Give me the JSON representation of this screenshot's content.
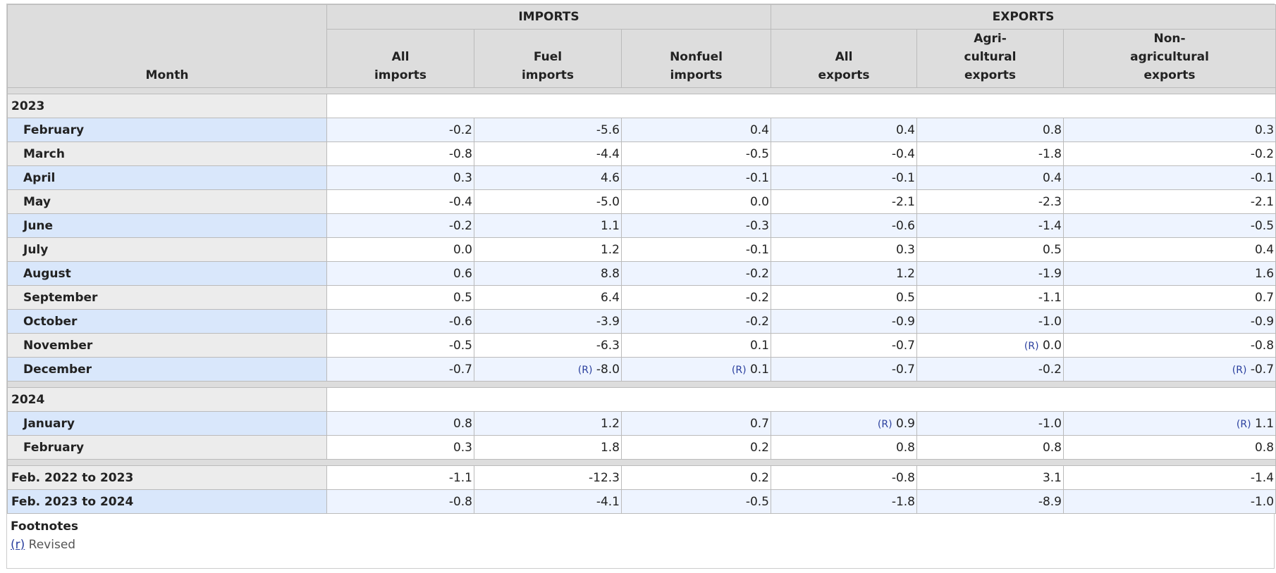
{
  "header": {
    "month": "Month",
    "groups": [
      {
        "label": "IMPORTS",
        "columns": [
          "All\nimports",
          "Fuel\nimports",
          "Nonfuel\nimports"
        ]
      },
      {
        "label": "EXPORTS",
        "columns": [
          "All\nexports",
          "Agri-\ncultural\nexports",
          "Non-\nagricultural\nexports"
        ]
      }
    ]
  },
  "sections": [
    {
      "label": "2023",
      "rows": [
        {
          "month": "February",
          "cells": [
            "-0.2",
            "-5.6",
            "0.4",
            "0.4",
            "0.8",
            "0.3"
          ]
        },
        {
          "month": "March",
          "cells": [
            "-0.8",
            "-4.4",
            "-0.5",
            "-0.4",
            "-1.8",
            "-0.2"
          ]
        },
        {
          "month": "April",
          "cells": [
            "0.3",
            "4.6",
            "-0.1",
            "-0.1",
            "0.4",
            "-0.1"
          ]
        },
        {
          "month": "May",
          "cells": [
            "-0.4",
            "-5.0",
            "0.0",
            "-2.1",
            "-2.3",
            "-2.1"
          ]
        },
        {
          "month": "June",
          "cells": [
            "-0.2",
            "1.1",
            "-0.3",
            "-0.6",
            "-1.4",
            "-0.5"
          ]
        },
        {
          "month": "July",
          "cells": [
            "0.0",
            "1.2",
            "-0.1",
            "0.3",
            "0.5",
            "0.4"
          ]
        },
        {
          "month": "August",
          "cells": [
            "0.6",
            "8.8",
            "-0.2",
            "1.2",
            "-1.9",
            "1.6"
          ]
        },
        {
          "month": "September",
          "cells": [
            "0.5",
            "6.4",
            "-0.2",
            "0.5",
            "-1.1",
            "0.7"
          ]
        },
        {
          "month": "October",
          "cells": [
            "-0.6",
            "-3.9",
            "-0.2",
            "-0.9",
            "-1.0",
            "-0.9"
          ]
        },
        {
          "month": "November",
          "cells": [
            "-0.5",
            "-6.3",
            "0.1",
            "-0.7",
            {
              "note": "(R)",
              "value": "0.0"
            },
            "-0.8"
          ]
        },
        {
          "month": "December",
          "cells": [
            "-0.7",
            {
              "note": "(R)",
              "value": "-8.0"
            },
            {
              "note": "(R)",
              "value": "0.1"
            },
            "-0.7",
            "-0.2",
            {
              "note": "(R)",
              "value": "-0.7"
            }
          ]
        }
      ]
    },
    {
      "label": "2024",
      "rows": [
        {
          "month": "January",
          "cells": [
            "0.8",
            "1.2",
            "0.7",
            {
              "note": "(R)",
              "value": "0.9"
            },
            "-1.0",
            {
              "note": "(R)",
              "value": "1.1"
            }
          ]
        },
        {
          "month": "February",
          "cells": [
            "0.3",
            "1.8",
            "0.2",
            "0.8",
            "0.8",
            "0.8"
          ]
        }
      ]
    }
  ],
  "summary": [
    {
      "month": "Feb. 2022 to 2023",
      "cells": [
        "-1.1",
        "-12.3",
        "0.2",
        "-0.8",
        "3.1",
        "-1.4"
      ]
    },
    {
      "month": "Feb. 2023 to 2024",
      "cells": [
        "-0.8",
        "-4.1",
        "-0.5",
        "-1.8",
        "-8.9",
        "-1.0"
      ]
    }
  ],
  "footnotes": {
    "title": "Footnotes",
    "items": [
      {
        "marker": "(r)",
        "text": "Revised"
      }
    ]
  }
}
